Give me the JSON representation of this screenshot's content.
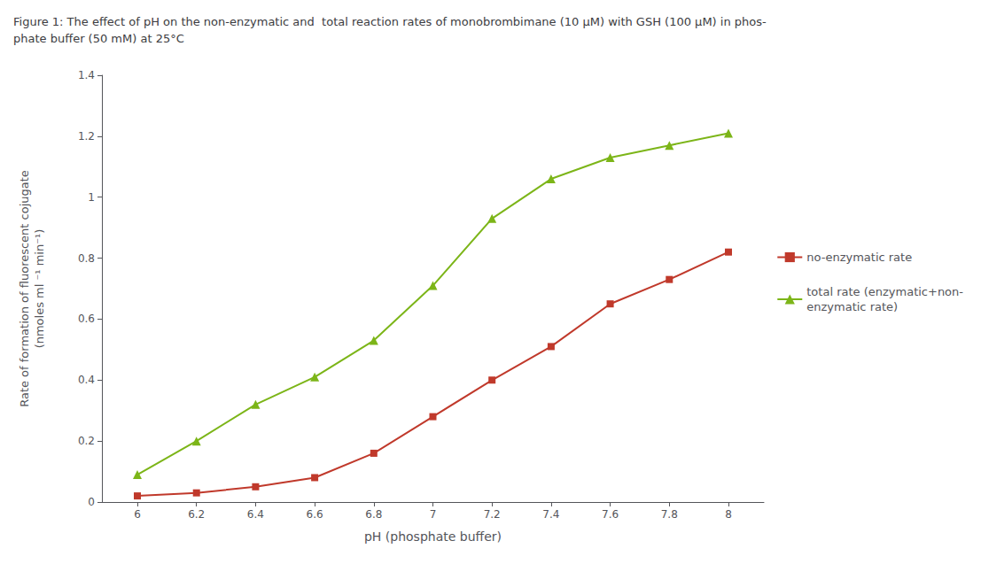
{
  "chart_data": {
    "type": "line",
    "title": "Figure 1: The effect of pH on the non-enzymatic and  total reaction rates of monobrombimane (10 μM) with GSH (100 μM) in phos-\nphate buffer (50 mM) at 25°C",
    "x_label": "pH (phosphate buffer)",
    "y_label": "Rate of formation of fluorescent cojugate\n(nmoles ml ⁻¹ min⁻¹)",
    "x": [
      6.0,
      6.2,
      6.4,
      6.6,
      6.8,
      7.0,
      7.2,
      7.4,
      7.6,
      7.8,
      8.0
    ],
    "series": [
      {
        "name": "no-enzymatic rate",
        "color": "#C0392B",
        "marker": "square",
        "values": [
          0.02,
          0.03,
          0.05,
          0.08,
          0.16,
          0.28,
          0.4,
          0.51,
          0.65,
          0.73,
          0.82
        ]
      },
      {
        "name": "total rate (enzymatic+non-\nenzymatic rate)",
        "color": "#7CB518",
        "marker": "triangle",
        "values": [
          0.09,
          0.2,
          0.32,
          0.41,
          0.53,
          0.71,
          0.93,
          1.06,
          1.13,
          1.17,
          1.21
        ]
      }
    ],
    "xlim": [
      5.88,
      8.12
    ],
    "xticks": [
      6,
      6.2,
      6.4,
      6.6,
      6.8,
      7,
      7.2,
      7.4,
      7.6,
      7.8,
      8
    ],
    "ylim": [
      0,
      1.4
    ],
    "yticks": [
      0,
      0.2,
      0.4,
      0.6,
      0.8,
      1,
      1.2,
      1.4
    ],
    "grid": false,
    "legend": "right"
  }
}
